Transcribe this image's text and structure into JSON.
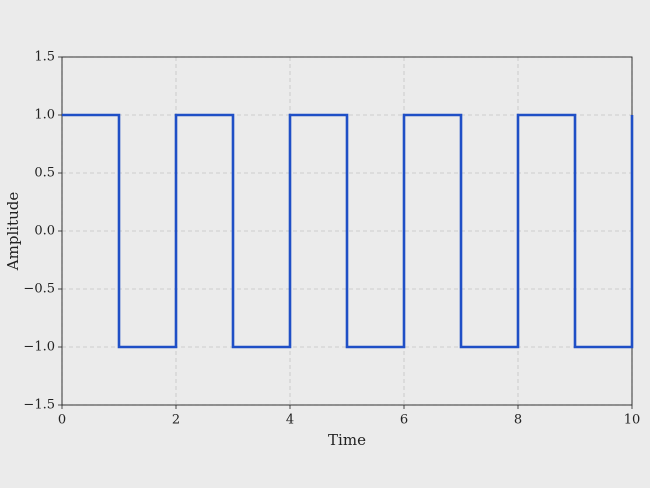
{
  "chart_data": {
    "type": "line",
    "xlabel": "Time",
    "ylabel": "Amplitude",
    "x": [
      0,
      1,
      1,
      2,
      2,
      3,
      3,
      4,
      4,
      5,
      5,
      6,
      6,
      7,
      7,
      8,
      8,
      9,
      9,
      10,
      10
    ],
    "series": [
      {
        "color": "#1f4fc6",
        "values": [
          1,
          1,
          -1,
          -1,
          1,
          1,
          -1,
          -1,
          1,
          1,
          -1,
          -1,
          1,
          1,
          -1,
          -1,
          1,
          1,
          -1,
          -1,
          1
        ]
      }
    ],
    "xlim": [
      0,
      10
    ],
    "xticks": [
      0,
      2,
      4,
      6,
      8,
      10
    ],
    "ylim": [
      -1.5,
      1.5
    ],
    "yticks": [
      {
        "value": -1.5,
        "label": "−1.5"
      },
      {
        "value": -1,
        "label": "−1.0"
      },
      {
        "value": -0.5,
        "label": "−0.5"
      },
      {
        "value": 0,
        "label": "0.0"
      },
      {
        "value": 0.5,
        "label": "0.5"
      },
      {
        "value": 1,
        "label": "1.0"
      },
      {
        "value": 1.5,
        "label": "1.5"
      }
    ],
    "grid": true
  }
}
